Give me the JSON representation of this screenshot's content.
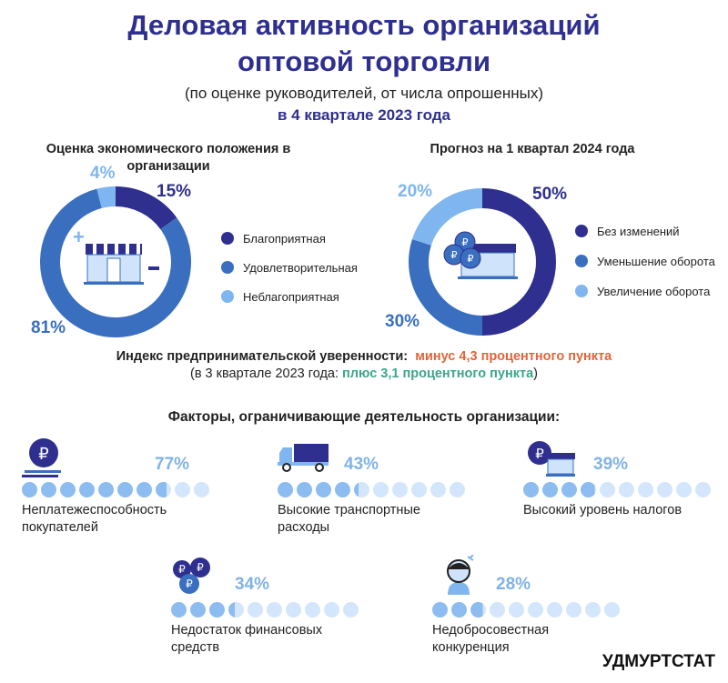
{
  "header": {
    "title_line1": "Деловая активность организаций",
    "title_line2": "оптовой торговли",
    "subtitle": "(по оценке руководителей, от числа опрошенных)",
    "period": "в 4 квартале 2023 года"
  },
  "colors": {
    "dark": "#2e2f8f",
    "mid": "#3a6fc0",
    "light": "#7fb6f0",
    "dot_on": "#8cbcf0",
    "dot_off": "#d3e6fb",
    "negative": "#e0653a",
    "positive": "#3aa68a"
  },
  "chart_data": [
    {
      "type": "pie",
      "title": "Оценка экономического положения в организации",
      "categories": [
        "Благоприятная",
        "Удовлетворительная",
        "Неблагоприятная"
      ],
      "values": [
        15,
        81,
        4
      ],
      "labels": [
        "15%",
        "81%",
        "4%"
      ]
    },
    {
      "type": "pie",
      "title": "Прогноз на 1 квартал 2024 года",
      "categories": [
        "Без изменений",
        "Уменьшение оборота",
        "Увеличение оборота"
      ],
      "values": [
        50,
        30,
        20
      ],
      "labels": [
        "50%",
        "30%",
        "20%"
      ]
    },
    {
      "type": "bar",
      "title": "Факторы, ограничивающие деятельность организации:",
      "categories": [
        "Неплатежеспособность покупателей",
        "Высокие транспортные расходы",
        "Высокий уровень налогов",
        "Недостаток финансовых средств",
        "Недобросовестная конкуренция"
      ],
      "values": [
        77,
        43,
        39,
        34,
        28
      ],
      "labels": [
        "77%",
        "43%",
        "39%",
        "34%",
        "28%"
      ]
    }
  ],
  "index": {
    "label": "Индекс предпринимательской уверенности:",
    "value": "минус 4,3 процентного пункта",
    "prev_open": "(в 3 квартале 2023 года:",
    "prev_value": "плюс 3,1 процентного пункта",
    "prev_close": ")"
  },
  "factors": {
    "title": "Факторы, ограничивающие деятельность организации:",
    "items": [
      {
        "line1": "Неплатежеспособность",
        "line2": "покупателей"
      },
      {
        "line1": "Высокие транспортные",
        "line2": "расходы"
      },
      {
        "line1": "Высокий уровень налогов",
        "line2": ""
      },
      {
        "line1": "Недостаток финансовых",
        "line2": "средств"
      },
      {
        "line1": "Недобросовестная",
        "line2": "конкуренция"
      }
    ]
  },
  "footer": {
    "brand": "УДМУРТСТАТ"
  }
}
